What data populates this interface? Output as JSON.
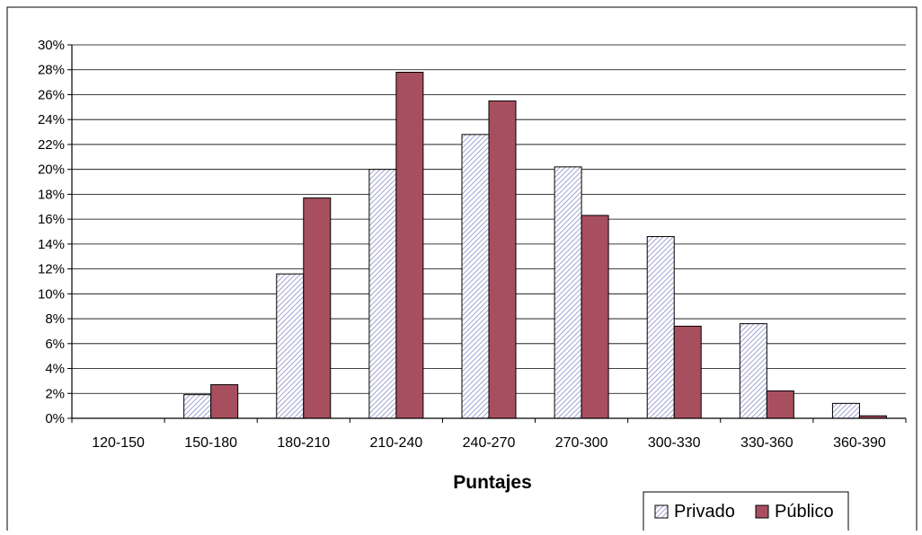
{
  "chart_data": {
    "type": "bar",
    "title": "",
    "xlabel": "Puntajes",
    "ylabel": "",
    "categories": [
      "120-150",
      "150-180",
      "180-210",
      "210-240",
      "240-270",
      "270-300",
      "300-330",
      "330-360",
      "360-390"
    ],
    "yticks": [
      "0%",
      "2%",
      "4%",
      "6%",
      "8%",
      "10%",
      "12%",
      "14%",
      "16%",
      "18%",
      "20%",
      "22%",
      "24%",
      "26%",
      "28%",
      "30%"
    ],
    "ylim": [
      0,
      30
    ],
    "y_unit": "%",
    "grid": true,
    "legend_position": "bottom-right",
    "series": [
      {
        "name": "Privado",
        "values": [
          0,
          1.9,
          11.6,
          20.0,
          22.8,
          20.2,
          14.6,
          7.6,
          1.2
        ],
        "fill": "hatched",
        "color": "#9a9ad2"
      },
      {
        "name": "Público",
        "values": [
          0,
          2.7,
          17.7,
          27.8,
          25.5,
          16.3,
          7.4,
          2.2,
          0.2
        ],
        "fill": "solid",
        "color": "#a84f5f"
      }
    ]
  }
}
